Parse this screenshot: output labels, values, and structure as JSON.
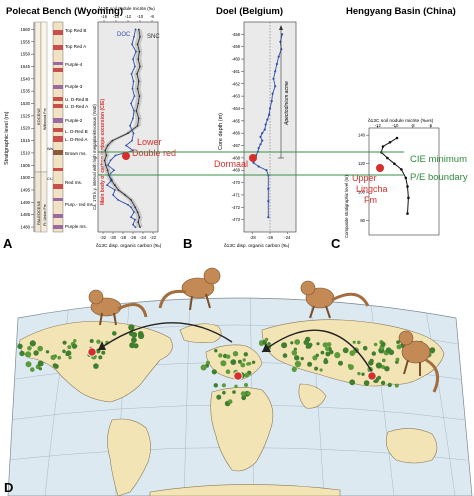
{
  "titles": {
    "polecat": "Polecat Bench (Wyoming)",
    "doel": "Doel (Belgium)",
    "hengyang": "Hengyang Basin (China)"
  },
  "panel_letters": {
    "a": "A",
    "b": "B",
    "c": "C",
    "d": "D"
  },
  "polecat": {
    "y_label": "Stratigraphic level (m)",
    "y_ticks": [
      "1560",
      "1555",
      "1550",
      "1545",
      "1540",
      "1535",
      "1530",
      "1525",
      "1520",
      "1515",
      "1510",
      "1505",
      "1500",
      "1495",
      "1490",
      "1485",
      "1480"
    ],
    "units": [
      "Top Red B",
      "Top Red A",
      "Purple-4",
      "Purple-3",
      "U. D-Red B",
      "U. D-Red A",
      "Purple-2",
      "L. D-Red B",
      "L. D-Red A",
      "Brown ms.",
      "Red ms.",
      "Purp.- red ms.",
      "Purple ms."
    ],
    "epoch_labels": [
      "EOCENE",
      "PALEOCENE",
      "Willwood Fm",
      "Ft. Union Fm",
      "Wa-0",
      "Cf-3"
    ],
    "top_axis_label": "δ13C soil nodule micrite (‰)",
    "top_ticks": [
      "-16",
      "-14",
      "-12",
      "-10",
      "-8"
    ],
    "bottom_axis_label": "δ13C disp. organic carbon (‰)",
    "bottom_ticks": [
      "-32",
      "-30",
      "-28",
      "-26",
      "-24",
      "-22"
    ],
    "doc_label": "DOC",
    "snc_label": "SNC",
    "excursion_label": "Main body of carbon isotope excursion (CIE)",
    "duration_label": "Ca. 170 k.y. interval with high megaplanktivorous (Wa0)",
    "marker_label_1": "Lower",
    "marker_label_2": "Double red"
  },
  "doel": {
    "y_label": "Core depth (m)",
    "y_ticks": [
      "-458",
      "-459",
      "-460",
      "-461",
      "-462",
      "-463",
      "-464",
      "-465",
      "-466",
      "-467",
      "-468",
      "-469",
      "-470",
      "-471",
      "-472",
      "-473"
    ],
    "bottom_axis_label": "δ13C disp. organic carbon (‰)",
    "bottom_ticks": [
      "-28",
      "-26",
      "-24"
    ],
    "biozone_label": "Apectodinium acme",
    "marker_label": "Dormaal"
  },
  "hengyang": {
    "y_label": "Composite stratigraphic level (m)",
    "top_axis_label": "δ13C soil nodule micrite (‰vs)",
    "top_ticks": [
      "-12",
      "-10",
      "-8",
      "-6"
    ],
    "y_ticks": [
      "140",
      "120",
      "100",
      "80"
    ],
    "marker_label_1": "Upper",
    "marker_label_2": "Lingcha",
    "marker_label_3": "Fm",
    "cie_label": "CIE minimum",
    "pe_label": "P/E boundary"
  },
  "colors": {
    "accent_red": "#d62f2a",
    "correlation_green": "#3b8f4a",
    "label_green": "#2f8a3c",
    "series_blue": "#2f4fa8",
    "ocean": "#dde9f1",
    "land": "#f3e4b5",
    "forest": "#3f7f2f",
    "animal": "#c48a55"
  },
  "chart_data": [
    {
      "panel": "A",
      "type": "line",
      "title": "Polecat Bench (Wyoming)",
      "ylabel": "Stratigraphic level (m)",
      "xlabel": "δ13C disp. organic carbon (‰)",
      "ylim": [
        1478,
        1563
      ],
      "xlim": [
        -33,
        -21
      ],
      "series": [
        {
          "name": "DOC",
          "x": [
            -25.5,
            -25.8,
            -26.2,
            -25.4,
            -26.0,
            -25.6,
            -26.3,
            -25.9,
            -26.1,
            -25.7,
            -26.4,
            -25.8,
            -26.0,
            -26.6,
            -25.9,
            -26.2,
            -27.4,
            -26.0,
            -29.5,
            -30.5,
            -31.0,
            -29.8,
            -30.8,
            -30.2,
            -31.2,
            -29.6,
            -30.0,
            -29.0,
            -27.0,
            -26.4,
            -25.8,
            -26.4,
            -25.6,
            -26.0,
            -25.5
          ],
          "y": [
            1560,
            1557,
            1554,
            1551,
            1548,
            1545,
            1542,
            1539,
            1536,
            1533,
            1530,
            1527,
            1524,
            1521,
            1518,
            1515,
            1513,
            1511,
            1509,
            1507,
            1505,
            1503,
            1501,
            1499,
            1497,
            1495,
            1493,
            1491,
            1489,
            1488,
            1486,
            1484,
            1483,
            1481,
            1480
          ]
        },
        {
          "name": "SNC",
          "x": [
            -10.2,
            -10.0,
            -10.4,
            -10.1,
            -10.3,
            -10.0,
            -10.5,
            -10.2,
            -10.4,
            -10.1,
            -10.3,
            -10.6,
            -10.2,
            -10.4,
            -12.0,
            -14.6,
            -15.4,
            -15.8,
            -15.6,
            -15.9,
            -15.7,
            -15.4,
            -15.2,
            -14.8,
            -14.2,
            -13.6,
            -12.5,
            -11.5,
            -10.8,
            -10.4,
            -10.1,
            -10.3,
            -10.0
          ],
          "y": [
            1560,
            1557,
            1554,
            1551,
            1548,
            1545,
            1542,
            1539,
            1536,
            1533,
            1530,
            1527,
            1524,
            1521,
            1518,
            1515,
            1513,
            1511,
            1509,
            1507,
            1505,
            1503,
            1501,
            1499,
            1497,
            1495,
            1493,
            1491,
            1488,
            1486,
            1484,
            1482,
            1480
          ]
        }
      ]
    },
    {
      "panel": "B",
      "type": "line",
      "title": "Doel (Belgium)",
      "ylabel": "Core depth (m)",
      "xlabel": "δ13C disp. organic carbon (‰)",
      "ylim": [
        -474,
        -457
      ],
      "xlim": [
        -29,
        -23
      ],
      "series": [
        {
          "name": "",
          "x": [
            -24.6,
            -24.8,
            -24.7,
            -25.0,
            -25.2,
            -25.4,
            -25.6,
            -25.4,
            -25.7,
            -25.8,
            -26.0,
            -26.1,
            -26.3,
            -26.5,
            -26.6,
            -26.9,
            -27.1,
            -26.9,
            -27.1,
            -27.3,
            -27.4,
            -27.6,
            -27.7,
            -27.9,
            -27.3,
            -26.4,
            -26.2,
            -26.2,
            -26.2,
            -26.2
          ],
          "y": [
            -458.0,
            -458.6,
            -459.2,
            -459.8,
            -460.4,
            -461.0,
            -461.6,
            -462.2,
            -462.8,
            -463.4,
            -464.0,
            -464.5,
            -464.9,
            -465.3,
            -465.7,
            -466.0,
            -466.3,
            -466.6,
            -466.9,
            -467.2,
            -467.5,
            -467.8,
            -468.1,
            -468.4,
            -468.7,
            -469.0,
            -469.4,
            -470.5,
            -471.5,
            -472.8
          ]
        }
      ]
    },
    {
      "panel": "C",
      "type": "line",
      "title": "Hengyang Basin (China)",
      "ylabel": "Composite stratigraphic level (m)",
      "xlabel": "δ13C soil nodule micrite (‰vs)",
      "ylim": [
        70,
        145
      ],
      "xlim": [
        -13,
        -5
      ],
      "series": [
        {
          "name": "",
          "x": [
            -9.8,
            -10.6,
            -11.4,
            -11.6,
            -10.9,
            -10.1,
            -9.3,
            -8.8,
            -8.6,
            -8.5,
            -8.6
          ],
          "y": [
            138,
            135,
            132,
            128,
            124,
            120,
            116,
            110,
            104,
            96,
            85
          ]
        }
      ]
    }
  ],
  "map": {
    "migration_points": [
      {
        "region": "North America",
        "lon": -105,
        "lat": 45
      },
      {
        "region": "Europe",
        "lon": 5,
        "lat": 50
      },
      {
        "region": "Asia",
        "lon": 112,
        "lat": 27
      }
    ]
  }
}
